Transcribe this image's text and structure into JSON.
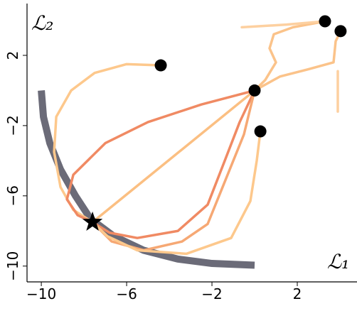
{
  "chart_data": {
    "type": "line",
    "x_label": "ℒ₁",
    "y_label": "ℒ₂",
    "xlim": [
      -10.67,
      4.8
    ],
    "ylim": [
      -10.9,
      4.95
    ],
    "xticks": [
      {
        "value": -10,
        "label": "−10"
      },
      {
        "value": -6,
        "label": "−6"
      },
      {
        "value": -2,
        "label": "−2"
      },
      2
    ],
    "yticks": [
      {
        "value": -10,
        "label": "−10"
      },
      {
        "value": -6,
        "label": "−6"
      },
      {
        "value": -2,
        "label": "−2"
      },
      2
    ],
    "front": {
      "color": "#6b6b78",
      "x": [
        -10,
        -9.9,
        -9.6,
        -9.1,
        -8.4,
        -7.7,
        -6.6,
        -5.2,
        -3.6,
        -2,
        0
      ],
      "y": [
        0,
        -1.5,
        -3,
        -4.5,
        -6,
        -7.3,
        -8.3,
        -9.1,
        -9.6,
        -9.85,
        -9.95
      ]
    },
    "series": [
      {
        "color": "#fdc88c",
        "x": [
          -4.4,
          -6,
          -7.5,
          -8.6,
          -9.3,
          -9.4,
          -9.1,
          -8.5,
          -7.6
        ],
        "y": [
          1.43,
          1.5,
          1.0,
          0,
          -1.5,
          -3.5,
          -5.5,
          -6.8,
          -7.5
        ]
      },
      {
        "color": "#fbbf82",
        "x": [
          0,
          -7.6
        ],
        "y": [
          0,
          -7.5
        ]
      },
      {
        "color": "#f08a63",
        "x": [
          0,
          -2.5,
          -5,
          -7,
          -8.5,
          -8.8,
          -8.3,
          -7.6
        ],
        "y": [
          0,
          -0.8,
          -1.8,
          -3,
          -4.8,
          -6.2,
          -7.1,
          -7.5
        ]
      },
      {
        "color": "#f08a63",
        "x": [
          0,
          -0.7,
          -1.4,
          -2.2,
          -3.6,
          -5.5,
          -6.8,
          -7.6
        ],
        "y": [
          0,
          -1.8,
          -4,
          -6.5,
          -8,
          -8.4,
          -8.1,
          -7.5
        ]
      },
      {
        "color": "#f6a874",
        "x": [
          0,
          -0.5,
          -1.5,
          -2.2,
          -3.4,
          -5.2,
          -6.7,
          -7.6
        ],
        "y": [
          0,
          -2.5,
          -5.5,
          -7.6,
          -8.6,
          -9.1,
          -8.6,
          -7.5
        ]
      },
      {
        "color": "#fdc88c",
        "x": [
          0.27,
          0.1,
          -0.2,
          -1.1,
          -3.2,
          -5.5,
          -6.9,
          -7.6
        ],
        "y": [
          -2.33,
          -4,
          -6.3,
          -8.4,
          -9.3,
          -9.1,
          -8.3,
          -7.5
        ]
      },
      {
        "color": "#fbc38a",
        "x": [
          3.3,
          1.8,
          0.9,
          0.7,
          1.0,
          0.5,
          0
        ],
        "y": [
          3.94,
          3.6,
          3.2,
          2.4,
          1.6,
          0.6,
          0
        ]
      },
      {
        "color": "#fbc38a",
        "x": [
          4.03,
          3.8,
          3.7,
          2.5,
          1.2,
          0
        ],
        "y": [
          3.38,
          2.8,
          1.6,
          1.2,
          0.8,
          0
        ]
      },
      {
        "color": "#fdd0a0",
        "x": [
          3.3,
          1.5,
          -0.6
        ],
        "y": [
          3.94,
          3.75,
          3.6
        ]
      },
      {
        "color": "#fdd0a0",
        "x": [
          3.9,
          3.9
        ],
        "y": [
          1.1,
          -1.2
        ]
      }
    ],
    "points": {
      "color": "#000000",
      "x": [
        -4.4,
        0,
        0.27,
        3.3,
        4.03
      ],
      "y": [
        1.43,
        0,
        -2.33,
        3.94,
        3.38
      ]
    },
    "optimum": {
      "color": "#000000",
      "x": -7.6,
      "y": -7.5
    }
  }
}
